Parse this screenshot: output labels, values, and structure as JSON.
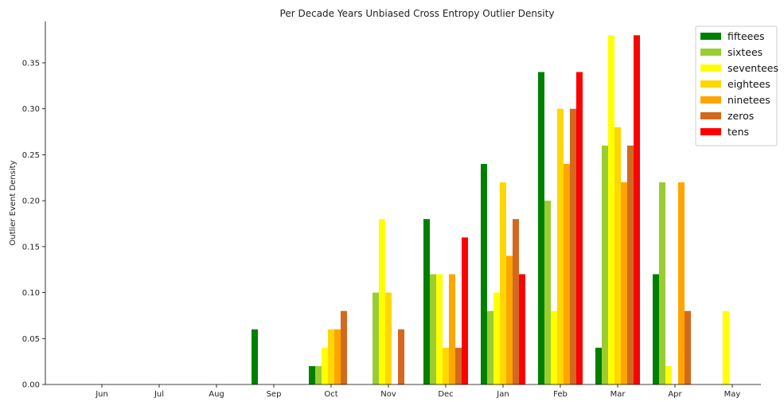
{
  "chart_data": {
    "type": "bar",
    "title": "Per Decade Years Unbiased Cross Entropy Outlier Density",
    "xlabel": "",
    "ylabel": "Outlier Event Density",
    "categories": [
      "Jun",
      "Jul",
      "Aug",
      "Sep",
      "Oct",
      "Nov",
      "Dec",
      "Jan",
      "Feb",
      "Mar",
      "Apr",
      "May"
    ],
    "ylim": [
      0,
      0.395
    ],
    "yticks": [
      "0.00",
      "0.05",
      "0.10",
      "0.15",
      "0.20",
      "0.25",
      "0.30",
      "0.35"
    ],
    "grid": false,
    "legend_position": "top-right",
    "series": [
      {
        "name": "fifteees",
        "color": "#008000",
        "values": [
          0,
          0,
          0,
          0.06,
          0.02,
          0,
          0.18,
          0.24,
          0.34,
          0.04,
          0.12,
          0
        ]
      },
      {
        "name": "sixtees",
        "color": "#9acd32",
        "values": [
          0,
          0,
          0,
          0,
          0.02,
          0.1,
          0.12,
          0.08,
          0.2,
          0.26,
          0.22,
          0
        ]
      },
      {
        "name": "seventees",
        "color": "#ffff00",
        "values": [
          0,
          0,
          0,
          0,
          0.04,
          0.18,
          0.12,
          0.1,
          0.08,
          0.38,
          0.02,
          0.08
        ]
      },
      {
        "name": "eightees",
        "color": "#ffd700",
        "values": [
          0,
          0,
          0,
          0,
          0.06,
          0.1,
          0.04,
          0.22,
          0.3,
          0.28,
          0,
          0
        ]
      },
      {
        "name": "ninetees",
        "color": "#ffa500",
        "values": [
          0,
          0,
          0,
          0,
          0.06,
          0,
          0.12,
          0.14,
          0.24,
          0.22,
          0.22,
          0
        ]
      },
      {
        "name": "zeros",
        "color": "#d2691e",
        "values": [
          0,
          0,
          0,
          0,
          0.08,
          0.06,
          0.04,
          0.18,
          0.3,
          0.26,
          0.08,
          0
        ]
      },
      {
        "name": "tens",
        "color": "#ff0000",
        "values": [
          0,
          0,
          0,
          0,
          0,
          0,
          0.16,
          0.12,
          0.34,
          0.38,
          0,
          0
        ]
      }
    ]
  }
}
